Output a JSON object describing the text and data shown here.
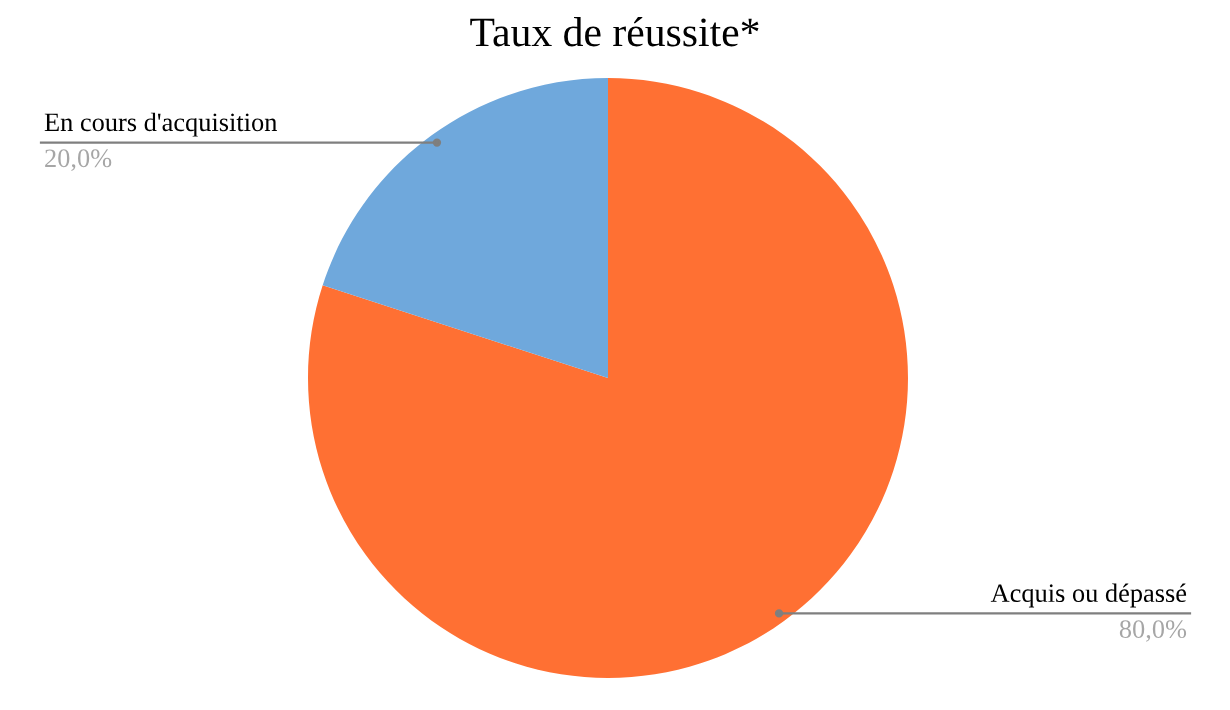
{
  "chart_data": {
    "type": "pie",
    "title": "Taux de réussite*",
    "categories": [
      "Acquis ou dépassé",
      "En cours d'acquisition"
    ],
    "values": [
      80,
      20
    ],
    "colors": [
      "#ff7033",
      "#6fa8dc"
    ],
    "value_labels": [
      "80,0%",
      "20,0%"
    ],
    "legend": false
  }
}
